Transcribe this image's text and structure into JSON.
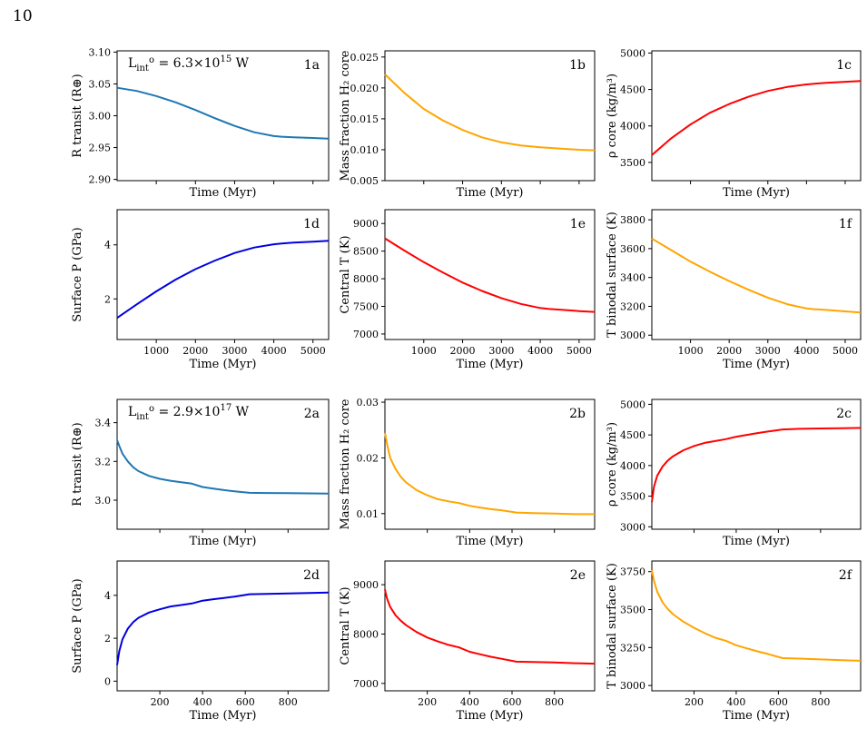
{
  "page_number": "10",
  "colors": {
    "steel_blue": "#1f77b4",
    "orange": "#ffa500",
    "red": "#ff0000",
    "blue": "#0000e0"
  },
  "chart_data": [
    {
      "id": "1a",
      "type": "line",
      "panel_label": "1a",
      "annotation": "L_int^o = 6.3x10^15 W",
      "xlabel": "Time (Myr)",
      "ylabel": "R transit (R⊕)",
      "xlim": [
        0,
        5400
      ],
      "ylim": [
        2.898,
        3.102
      ],
      "xticks": [],
      "yticks": [
        2.9,
        2.95,
        3.0,
        3.05,
        3.1
      ],
      "ytick_labels": [
        "2.90",
        "2.95",
        "3.00",
        "3.05",
        "3.10"
      ],
      "color": "#1f77b4",
      "x": [
        0,
        500,
        1000,
        1500,
        2000,
        2500,
        3000,
        3500,
        4000,
        4200,
        4500,
        5000,
        5400
      ],
      "y": [
        3.044,
        3.039,
        3.031,
        3.021,
        3.009,
        2.996,
        2.984,
        2.974,
        2.968,
        2.967,
        2.966,
        2.965,
        2.964
      ]
    },
    {
      "id": "1b",
      "type": "line",
      "panel_label": "1b",
      "xlabel": "Time (Myr)",
      "ylabel": "Mass fraction H₂ core",
      "xlim": [
        0,
        5400
      ],
      "ylim": [
        0.005,
        0.026
      ],
      "xticks": [],
      "yticks": [
        0.005,
        0.01,
        0.015,
        0.02,
        0.025
      ],
      "ytick_labels": [
        "0.005",
        "0.010",
        "0.015",
        "0.020",
        "0.025"
      ],
      "color": "#ffa500",
      "x": [
        0,
        500,
        1000,
        1500,
        2000,
        2500,
        3000,
        3500,
        4000,
        4500,
        5000,
        5400
      ],
      "y": [
        0.0222,
        0.0192,
        0.0166,
        0.0147,
        0.0132,
        0.012,
        0.0112,
        0.0107,
        0.0104,
        0.0102,
        0.01,
        0.0099
      ]
    },
    {
      "id": "1c",
      "type": "line",
      "panel_label": "1c",
      "xlabel": "Time (Myr)",
      "ylabel": "ρ core (kg/m³)",
      "xlim": [
        0,
        5400
      ],
      "ylim": [
        3250,
        5030
      ],
      "xticks": [],
      "yticks": [
        3500,
        4000,
        4500,
        5000
      ],
      "ytick_labels": [
        "3500",
        "4000",
        "4500",
        "5000"
      ],
      "color": "#ff0000",
      "x": [
        0,
        500,
        1000,
        1500,
        2000,
        2500,
        3000,
        3500,
        4000,
        4200,
        4500,
        5000,
        5400
      ],
      "y": [
        3600,
        3830,
        4020,
        4180,
        4300,
        4400,
        4480,
        4535,
        4570,
        4580,
        4590,
        4605,
        4615
      ]
    },
    {
      "id": "1d",
      "type": "line",
      "panel_label": "1d",
      "xlabel": "Time (Myr)",
      "ylabel": "Surface P (GPa)",
      "xlim": [
        0,
        5400
      ],
      "ylim": [
        0.5,
        5.3
      ],
      "xticks": [
        1000,
        2000,
        3000,
        4000,
        5000
      ],
      "xtick_labels": [
        "1000",
        "2000",
        "3000",
        "4000",
        "5000"
      ],
      "yticks": [
        2,
        4
      ],
      "ytick_labels": [
        "2",
        "4"
      ],
      "color": "#0000e0",
      "x": [
        0,
        500,
        1000,
        1500,
        2000,
        2500,
        3000,
        3500,
        4000,
        4200,
        4500,
        5000,
        5400
      ],
      "y": [
        1.3,
        1.8,
        2.28,
        2.72,
        3.1,
        3.42,
        3.7,
        3.9,
        4.02,
        4.05,
        4.08,
        4.12,
        4.15
      ]
    },
    {
      "id": "1e",
      "type": "line",
      "panel_label": "1e",
      "xlabel": "Time (Myr)",
      "ylabel": "Central T (K)",
      "xlim": [
        0,
        5400
      ],
      "ylim": [
        6900,
        9250
      ],
      "xticks": [
        1000,
        2000,
        3000,
        4000,
        5000
      ],
      "xtick_labels": [
        "1000",
        "2000",
        "3000",
        "4000",
        "5000"
      ],
      "yticks": [
        7000,
        7500,
        8000,
        8500,
        9000
      ],
      "ytick_labels": [
        "7000",
        "7500",
        "8000",
        "8500",
        "9000"
      ],
      "color": "#ff0000",
      "x": [
        0,
        500,
        1000,
        1500,
        2000,
        2500,
        3000,
        3500,
        4000,
        4200,
        4500,
        5000,
        5400
      ],
      "y": [
        8730,
        8510,
        8300,
        8110,
        7930,
        7780,
        7650,
        7545,
        7470,
        7455,
        7440,
        7415,
        7400
      ]
    },
    {
      "id": "1f",
      "type": "line",
      "panel_label": "1f",
      "xlabel": "Time (Myr)",
      "ylabel": "T binodal surface (K)",
      "xlim": [
        0,
        5400
      ],
      "ylim": [
        2970,
        3870
      ],
      "xticks": [
        1000,
        2000,
        3000,
        4000,
        5000
      ],
      "xtick_labels": [
        "1000",
        "2000",
        "3000",
        "4000",
        "5000"
      ],
      "yticks": [
        3000,
        3200,
        3400,
        3600,
        3800
      ],
      "ytick_labels": [
        "3000",
        "3200",
        "3400",
        "3600",
        "3800"
      ],
      "color": "#ffa500",
      "x": [
        0,
        500,
        1000,
        1500,
        2000,
        2500,
        3000,
        3500,
        4000,
        4200,
        4500,
        5000,
        5400
      ],
      "y": [
        3670,
        3590,
        3510,
        3440,
        3375,
        3315,
        3260,
        3215,
        3185,
        3180,
        3175,
        3165,
        3157
      ]
    },
    {
      "id": "2a",
      "type": "line",
      "panel_label": "2a",
      "annotation": "L_int^o = 2.9x10^17 W",
      "xlabel": "Time (Myr)",
      "ylabel": "R transit (R⊕)",
      "xlim": [
        0,
        990
      ],
      "ylim": [
        2.85,
        3.52
      ],
      "xticks": [],
      "yticks": [
        3.0,
        3.2,
        3.4
      ],
      "ytick_labels": [
        "3.0",
        "3.2",
        "3.4"
      ],
      "color": "#1f77b4",
      "x": [
        0,
        10,
        25,
        50,
        75,
        100,
        150,
        200,
        250,
        300,
        350,
        400,
        450,
        500,
        550,
        620,
        700,
        800,
        900,
        990
      ],
      "y": [
        3.31,
        3.28,
        3.24,
        3.2,
        3.17,
        3.15,
        3.125,
        3.11,
        3.1,
        3.092,
        3.085,
        3.068,
        3.06,
        3.052,
        3.046,
        3.038,
        3.037,
        3.036,
        3.035,
        3.034
      ]
    },
    {
      "id": "2b",
      "type": "line",
      "panel_label": "2b",
      "xlabel": "Time (Myr)",
      "ylabel": "Mass fraction H₂ core",
      "xlim": [
        0,
        990
      ],
      "ylim": [
        0.0072,
        0.0305
      ],
      "xticks": [],
      "yticks": [
        0.01,
        0.02,
        0.03
      ],
      "ytick_labels": [
        "0.01",
        "0.02",
        "0.03"
      ],
      "color": "#ffa500",
      "x": [
        0,
        10,
        25,
        50,
        75,
        100,
        150,
        200,
        250,
        300,
        350,
        400,
        450,
        500,
        550,
        620,
        700,
        800,
        900,
        990
      ],
      "y": [
        0.0245,
        0.0225,
        0.02,
        0.018,
        0.0166,
        0.0156,
        0.0142,
        0.0133,
        0.0126,
        0.0122,
        0.0119,
        0.0114,
        0.0111,
        0.0108,
        0.0106,
        0.0102,
        0.0101,
        0.01,
        0.0099,
        0.0099
      ]
    },
    {
      "id": "2c",
      "type": "line",
      "panel_label": "2c",
      "xlabel": "Time (Myr)",
      "ylabel": "ρ core (kg/m³)",
      "xlim": [
        0,
        990
      ],
      "ylim": [
        2960,
        5080
      ],
      "xticks": [],
      "yticks": [
        3000,
        3500,
        4000,
        4500,
        5000
      ],
      "ytick_labels": [
        "3000",
        "3500",
        "4000",
        "4500",
        "5000"
      ],
      "color": "#ff0000",
      "x": [
        0,
        10,
        25,
        50,
        75,
        100,
        150,
        200,
        250,
        300,
        350,
        400,
        450,
        500,
        550,
        620,
        700,
        800,
        900,
        990
      ],
      "y": [
        3400,
        3650,
        3830,
        3980,
        4080,
        4150,
        4250,
        4320,
        4370,
        4400,
        4430,
        4470,
        4500,
        4530,
        4555,
        4590,
        4600,
        4605,
        4610,
        4615
      ]
    },
    {
      "id": "2d",
      "type": "line",
      "panel_label": "2d",
      "xlabel": "Time (Myr)",
      "ylabel": "Surface P (GPa)",
      "xlim": [
        0,
        990
      ],
      "ylim": [
        -0.45,
        5.6
      ],
      "xticks": [
        200,
        400,
        600,
        800
      ],
      "xtick_labels": [
        "200",
        "400",
        "600",
        "800"
      ],
      "yticks": [
        0,
        2,
        4
      ],
      "ytick_labels": [
        "0",
        "2",
        "4"
      ],
      "color": "#0000e0",
      "x": [
        0,
        10,
        25,
        50,
        75,
        100,
        150,
        200,
        250,
        300,
        350,
        400,
        450,
        500,
        550,
        620,
        700,
        800,
        900,
        990
      ],
      "y": [
        0.75,
        1.4,
        1.95,
        2.45,
        2.75,
        2.95,
        3.2,
        3.35,
        3.48,
        3.55,
        3.62,
        3.75,
        3.82,
        3.88,
        3.94,
        4.05,
        4.07,
        4.09,
        4.11,
        4.13
      ]
    },
    {
      "id": "2e",
      "type": "line",
      "panel_label": "2e",
      "xlabel": "Time (Myr)",
      "ylabel": "Central T (K)",
      "xlim": [
        0,
        990
      ],
      "ylim": [
        6850,
        9480
      ],
      "xticks": [
        200,
        400,
        600,
        800
      ],
      "xtick_labels": [
        "200",
        "400",
        "600",
        "800"
      ],
      "yticks": [
        7000,
        8000,
        9000
      ],
      "ytick_labels": [
        "7000",
        "8000",
        "9000"
      ],
      "color": "#ff0000",
      "x": [
        0,
        10,
        25,
        50,
        75,
        100,
        150,
        200,
        250,
        300,
        350,
        400,
        450,
        500,
        550,
        620,
        700,
        800,
        900,
        990
      ],
      "y": [
        8900,
        8720,
        8550,
        8380,
        8270,
        8180,
        8040,
        7930,
        7850,
        7780,
        7730,
        7640,
        7590,
        7540,
        7500,
        7440,
        7435,
        7425,
        7410,
        7400
      ]
    },
    {
      "id": "2f",
      "type": "line",
      "panel_label": "2f",
      "xlabel": "Time (Myr)",
      "ylabel": "T binodal surface (K)",
      "xlim": [
        0,
        990
      ],
      "ylim": [
        2965,
        3820
      ],
      "xticks": [
        200,
        400,
        600,
        800
      ],
      "xtick_labels": [
        "200",
        "400",
        "600",
        "800"
      ],
      "yticks": [
        3000,
        3250,
        3500,
        3750
      ],
      "ytick_labels": [
        "3000",
        "3250",
        "3500",
        "3750"
      ],
      "color": "#ffa500",
      "x": [
        0,
        10,
        25,
        50,
        75,
        100,
        150,
        200,
        250,
        300,
        350,
        400,
        450,
        500,
        550,
        620,
        700,
        800,
        900,
        990
      ],
      "y": [
        3760,
        3690,
        3620,
        3550,
        3505,
        3470,
        3420,
        3380,
        3345,
        3315,
        3295,
        3265,
        3245,
        3225,
        3208,
        3180,
        3177,
        3172,
        3167,
        3163
      ]
    }
  ]
}
